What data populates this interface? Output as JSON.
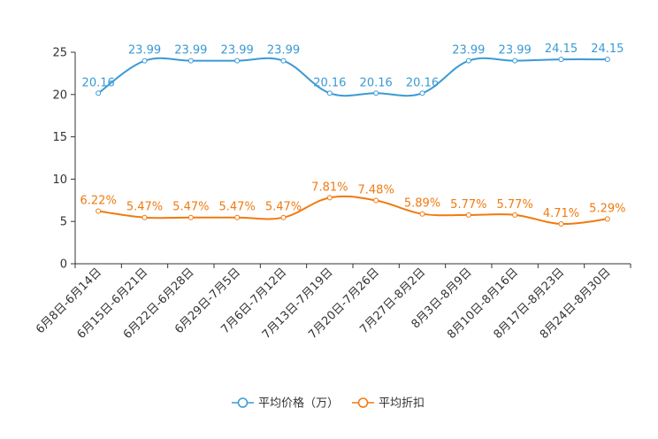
{
  "chart_data": {
    "type": "line",
    "categories": [
      "6月8日-6月14日",
      "6月15日-6月21日",
      "6月22日-6月28日",
      "6月29日-7月5日",
      "7月6日-7月12日",
      "7月13日-7月19日",
      "7月20日-7月26日",
      "7月27日-8月2日",
      "8月3日-8月9日",
      "8月10日-8月16日",
      "8月17日-8月23日",
      "8月24日-8月30日"
    ],
    "series": [
      {
        "name": "平均价格（万）",
        "color": "#3a9ad5",
        "values": [
          20.16,
          23.99,
          23.99,
          23.99,
          23.99,
          20.16,
          20.16,
          20.16,
          23.99,
          23.99,
          24.15,
          24.15
        ],
        "labels": [
          "20.16",
          "23.99",
          "23.99",
          "23.99",
          "23.99",
          "20.16",
          "20.16",
          "20.16",
          "23.99",
          "23.99",
          "24.15",
          "24.15"
        ]
      },
      {
        "name": "平均折扣",
        "color": "#f07a10",
        "values": [
          6.22,
          5.47,
          5.47,
          5.47,
          5.47,
          7.81,
          7.48,
          5.89,
          5.77,
          5.77,
          4.71,
          5.29
        ],
        "labels": [
          "6.22%",
          "5.47%",
          "5.47%",
          "5.47%",
          "5.47%",
          "7.81%",
          "7.48%",
          "5.89%",
          "5.77%",
          "5.77%",
          "4.71%",
          "5.29%"
        ]
      }
    ],
    "ylim": [
      0,
      25
    ],
    "yticks": [
      0,
      5,
      10,
      15,
      20,
      25
    ],
    "legend_position": "bottom-center"
  }
}
